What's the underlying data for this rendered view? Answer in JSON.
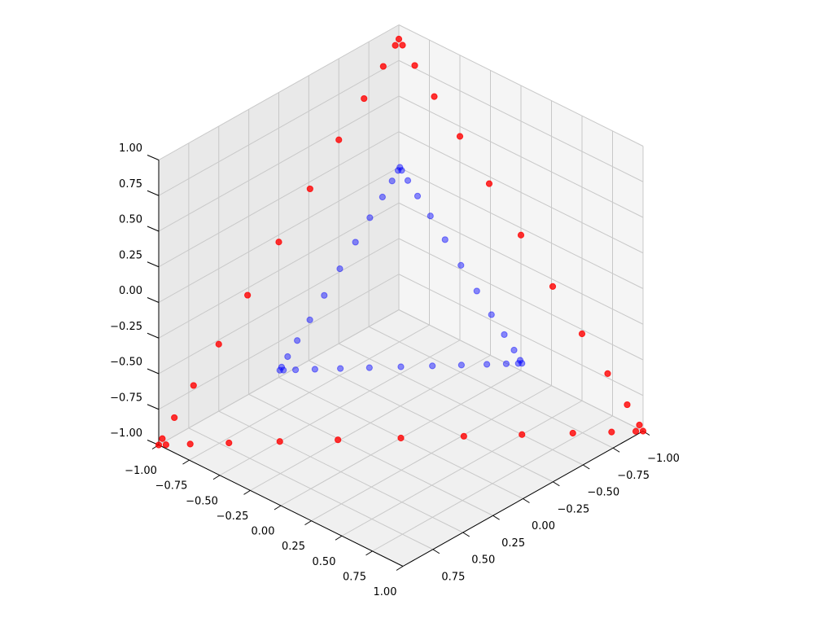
{
  "chart_data": {
    "type": "scatter3d",
    "xlim": [
      -1,
      1
    ],
    "ylim": [
      -1,
      1
    ],
    "zlim": [
      -1,
      1
    ],
    "xticks": [
      {
        "value": -1,
        "label": "−1.00"
      },
      {
        "value": -0.75,
        "label": "−0.75"
      },
      {
        "value": -0.5,
        "label": "−0.50"
      },
      {
        "value": -0.25,
        "label": "−0.25"
      },
      {
        "value": 0,
        "label": "0.00"
      },
      {
        "value": 0.25,
        "label": "0.25"
      },
      {
        "value": 0.5,
        "label": "0.50"
      },
      {
        "value": 0.75,
        "label": "0.75"
      },
      {
        "value": 1,
        "label": "1.00"
      }
    ],
    "yticks": [
      {
        "value": -1,
        "label": "−1.00"
      },
      {
        "value": -0.75,
        "label": "−0.75"
      },
      {
        "value": -0.5,
        "label": "−0.50"
      },
      {
        "value": -0.25,
        "label": "−0.25"
      },
      {
        "value": 0,
        "label": "0.00"
      },
      {
        "value": 0.25,
        "label": "0.25"
      },
      {
        "value": 0.5,
        "label": "0.50"
      },
      {
        "value": 0.75,
        "label": "0.75"
      }
    ],
    "zticks": [
      {
        "value": -1,
        "label": "−1.00"
      },
      {
        "value": -0.75,
        "label": "−0.75"
      },
      {
        "value": -0.5,
        "label": "−0.50"
      },
      {
        "value": -0.25,
        "label": "−0.25"
      },
      {
        "value": 0,
        "label": "0.00"
      },
      {
        "value": 0.25,
        "label": "0.25"
      },
      {
        "value": 0.5,
        "label": "0.50"
      },
      {
        "value": 0.75,
        "label": "0.75"
      },
      {
        "value": 1,
        "label": "1.00"
      }
    ],
    "grid": true,
    "series": [
      {
        "color": "#0000ff",
        "alpha": 0.45,
        "x": [
          -0.5,
          -0.485,
          -0.435,
          -0.355,
          -0.25,
          -0.13,
          0,
          0.13,
          0.25,
          0.355,
          0.435,
          0.485,
          0.5,
          0.485,
          0.435,
          0.355,
          0.25,
          0.13,
          0,
          -0.13,
          -0.25,
          -0.355,
          -0.435,
          -0.485,
          -0.5,
          -0.5,
          -0.5,
          -0.5,
          -0.5,
          -0.5,
          -0.5,
          -0.5,
          -0.5,
          -0.5,
          -0.5,
          -0.5
        ],
        "y": [
          0.5,
          0.485,
          0.435,
          0.355,
          0.25,
          0.13,
          0,
          -0.13,
          -0.25,
          -0.355,
          -0.435,
          -0.485,
          -0.5,
          -0.5,
          -0.5,
          -0.5,
          -0.5,
          -0.5,
          -0.5,
          -0.5,
          -0.5,
          -0.5,
          -0.5,
          -0.5,
          -0.5,
          -0.485,
          -0.435,
          -0.355,
          -0.25,
          -0.13,
          0,
          0.13,
          0.25,
          0.355,
          0.435,
          0.485
        ],
        "z": [
          -0.5,
          -0.5,
          -0.5,
          -0.5,
          -0.5,
          -0.5,
          -0.5,
          -0.5,
          -0.5,
          -0.5,
          -0.5,
          -0.5,
          -0.5,
          -0.485,
          -0.435,
          -0.36,
          -0.265,
          -0.15,
          -0.025,
          0.1,
          0.215,
          0.31,
          0.385,
          0.435,
          0.45,
          0.435,
          0.385,
          0.31,
          0.215,
          0.1,
          -0.025,
          -0.15,
          -0.265,
          -0.36,
          -0.435,
          -0.485
        ]
      },
      {
        "color": "#ff0000",
        "alpha": 0.8,
        "x": [
          -1,
          -0.97,
          -0.87,
          -0.71,
          -0.5,
          -0.26,
          0,
          0.26,
          0.5,
          0.71,
          0.87,
          0.97,
          1,
          0.97,
          0.87,
          0.71,
          0.5,
          0.26,
          0,
          -0.26,
          -0.5,
          -0.71,
          -0.87,
          -0.97,
          -1,
          -1,
          -1,
          -1,
          -1,
          -1,
          -1,
          -1,
          -1,
          -1,
          -1,
          -1
        ],
        "y": [
          1,
          0.97,
          0.87,
          0.71,
          0.5,
          0.26,
          0,
          -0.26,
          -0.5,
          -0.71,
          -0.87,
          -0.97,
          -1,
          -1,
          -1,
          -1,
          -1,
          -1,
          -1,
          -1,
          -1,
          -1,
          -1,
          -1,
          -1,
          -0.97,
          -0.87,
          -0.71,
          -0.5,
          -0.26,
          0,
          0.26,
          0.5,
          0.71,
          0.87,
          0.97
        ],
        "z": [
          -1,
          -1,
          -1,
          -1,
          -1,
          -1,
          -1,
          -1,
          -1,
          -1,
          -1,
          -1,
          -1,
          -0.97,
          -0.87,
          -0.72,
          -0.53,
          -0.3,
          -0.05,
          0.2,
          0.43,
          0.62,
          0.77,
          0.87,
          0.9,
          0.87,
          0.77,
          0.62,
          0.43,
          0.2,
          -0.05,
          -0.3,
          -0.53,
          -0.72,
          -0.87,
          -0.97
        ]
      }
    ]
  }
}
